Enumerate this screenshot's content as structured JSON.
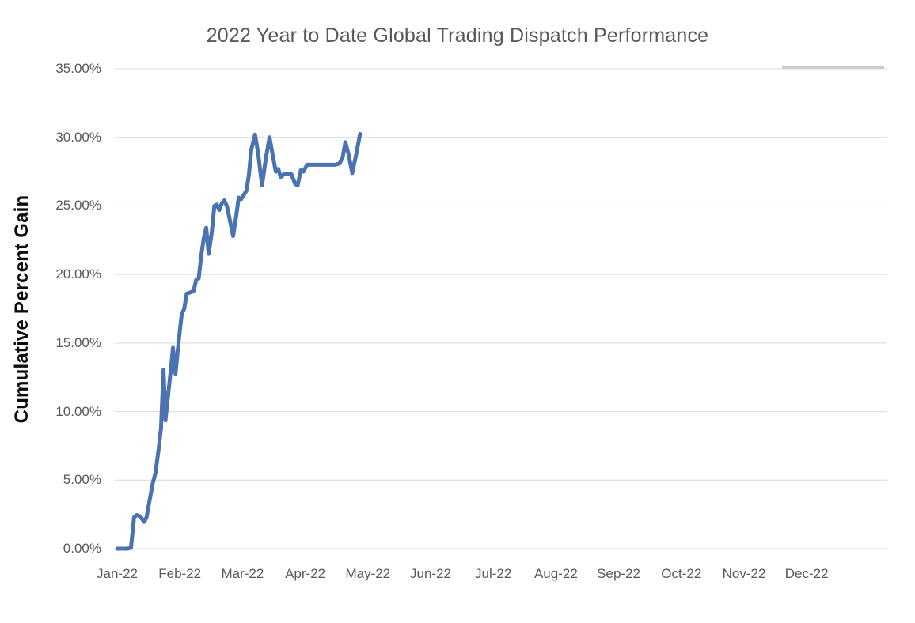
{
  "chart_data": {
    "type": "line",
    "title": "2022 Year to Date Global Trading Dispatch Performance",
    "ylabel": "Cumulative Percent Gain",
    "xlabel": "",
    "ylim": [
      0,
      35
    ],
    "y_tick_labels": [
      "35.00%",
      "30.00%",
      "25.00%",
      "20.00%",
      "15.00%",
      "10.00%",
      "5.00%",
      "0.00%"
    ],
    "x_tick_labels": [
      "Jan-22",
      "Feb-22",
      "Mar-22",
      "Apr-22",
      "May-22",
      "Jun-22",
      "Jul-22",
      "Aug-22",
      "Sep-22",
      "Oct-22",
      "Nov-22",
      "Dec-22"
    ],
    "x_unit": "months elapsed since Jan-22 tick",
    "grid": true,
    "legend": "none",
    "series": [
      {
        "name": "Cumulative Percent Gain",
        "points": [
          [
            0.0,
            0.0
          ],
          [
            0.05,
            0.0
          ],
          [
            0.1,
            0.0
          ],
          [
            0.16,
            0.0
          ],
          [
            0.22,
            0.05
          ],
          [
            0.27,
            2.3
          ],
          [
            0.31,
            2.45
          ],
          [
            0.37,
            2.35
          ],
          [
            0.43,
            1.95
          ],
          [
            0.47,
            2.3
          ],
          [
            0.52,
            3.6
          ],
          [
            0.57,
            4.8
          ],
          [
            0.61,
            5.5
          ],
          [
            0.66,
            7.2
          ],
          [
            0.7,
            8.8
          ],
          [
            0.74,
            13.05
          ],
          [
            0.77,
            9.35
          ],
          [
            0.82,
            11.5
          ],
          [
            0.86,
            13.2
          ],
          [
            0.89,
            14.65
          ],
          [
            0.93,
            12.75
          ],
          [
            0.97,
            14.6
          ],
          [
            1.0,
            15.9
          ],
          [
            1.03,
            17.1
          ],
          [
            1.07,
            17.5
          ],
          [
            1.11,
            18.6
          ],
          [
            1.17,
            18.7
          ],
          [
            1.22,
            18.8
          ],
          [
            1.26,
            19.6
          ],
          [
            1.3,
            19.7
          ],
          [
            1.34,
            21.3
          ],
          [
            1.38,
            22.6
          ],
          [
            1.42,
            23.4
          ],
          [
            1.46,
            21.5
          ],
          [
            1.51,
            23.1
          ],
          [
            1.55,
            25.0
          ],
          [
            1.59,
            25.1
          ],
          [
            1.63,
            24.7
          ],
          [
            1.67,
            25.2
          ],
          [
            1.71,
            25.4
          ],
          [
            1.75,
            25.0
          ],
          [
            1.8,
            23.9
          ],
          [
            1.85,
            22.8
          ],
          [
            1.9,
            24.3
          ],
          [
            1.94,
            25.6
          ],
          [
            1.98,
            25.5
          ],
          [
            2.02,
            25.8
          ],
          [
            2.06,
            26.1
          ],
          [
            2.1,
            27.2
          ],
          [
            2.14,
            29.1
          ],
          [
            2.2,
            30.2
          ],
          [
            2.25,
            28.8
          ],
          [
            2.31,
            26.5
          ],
          [
            2.37,
            28.4
          ],
          [
            2.43,
            30.0
          ],
          [
            2.49,
            28.5
          ],
          [
            2.53,
            27.5
          ],
          [
            2.57,
            27.7
          ],
          [
            2.61,
            27.1
          ],
          [
            2.66,
            27.3
          ],
          [
            2.72,
            27.3
          ],
          [
            2.78,
            27.3
          ],
          [
            2.84,
            26.6
          ],
          [
            2.88,
            26.5
          ],
          [
            2.93,
            27.6
          ],
          [
            2.97,
            27.5
          ],
          [
            3.03,
            28.0
          ],
          [
            3.1,
            28.0
          ],
          [
            3.2,
            28.0
          ],
          [
            3.3,
            28.0
          ],
          [
            3.4,
            28.0
          ],
          [
            3.48,
            28.0
          ],
          [
            3.55,
            28.1
          ],
          [
            3.6,
            28.6
          ],
          [
            3.64,
            29.65
          ],
          [
            3.69,
            28.8
          ],
          [
            3.75,
            27.4
          ],
          [
            3.81,
            28.7
          ],
          [
            3.875,
            30.25
          ]
        ]
      }
    ]
  },
  "colors": {
    "line": "#4B73B2",
    "gridline": "#D9D9D9",
    "gridline_accent": "#CBCBCB",
    "tick_label": "#595959",
    "title": "#595959",
    "axis_title": "#0D0D0D",
    "background": "#FFFFFF"
  }
}
